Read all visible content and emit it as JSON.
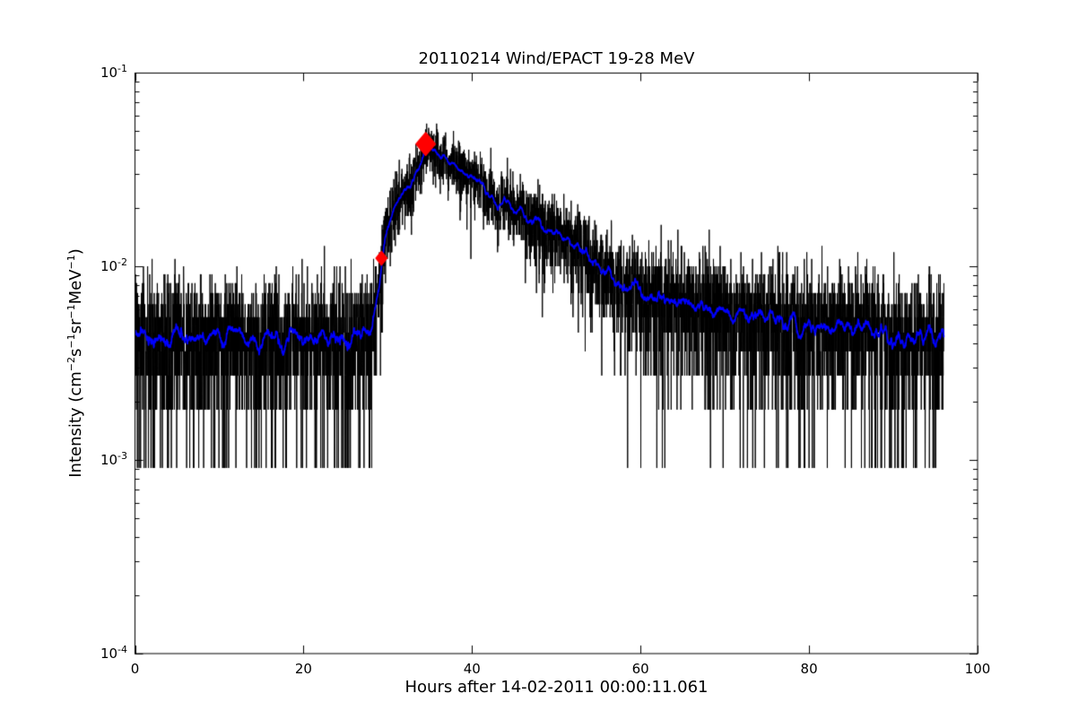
{
  "figure": {
    "background": "#ffffff"
  },
  "chart_data": {
    "type": "line",
    "title": "20110214 Wind/EPACT 19-28 MeV",
    "xlabel": "Hours after 14-02-2011 00:00:11.061",
    "ylabel_segments": [
      {
        "text": "Intensity (cm"
      },
      {
        "sup": "−2"
      },
      {
        "text": "s"
      },
      {
        "sup": "−1"
      },
      {
        "text": "sr"
      },
      {
        "sup": "−1"
      },
      {
        "text": "MeV"
      },
      {
        "sup": "−1"
      },
      {
        "text": ")"
      }
    ],
    "xlim": [
      0,
      100
    ],
    "yscale": "log",
    "ylim_exp": [
      -4,
      -1
    ],
    "grid": false,
    "legend": "none",
    "x_ticks": [
      {
        "value": 0,
        "label": "0"
      },
      {
        "value": 20,
        "label": "20"
      },
      {
        "value": 40,
        "label": "40"
      },
      {
        "value": 60,
        "label": "60"
      },
      {
        "value": 80,
        "label": "80"
      },
      {
        "value": 100,
        "label": "100"
      }
    ],
    "y_ticks": [
      {
        "value": 0.1,
        "base": "10",
        "exp": "-1"
      },
      {
        "value": 0.01,
        "base": "10",
        "exp": "-2"
      },
      {
        "value": 0.001,
        "base": "10",
        "exp": "-3"
      },
      {
        "value": 0.0001,
        "base": "10",
        "exp": "-4"
      }
    ],
    "y_minor_multiples": [
      2,
      3,
      4,
      5,
      6,
      7,
      8,
      9
    ],
    "series": [
      {
        "name": "raw 1-min intensity",
        "color": "#000000",
        "style": "noisy-line",
        "cadence_minutes": 1,
        "hours_start": 0,
        "hours_end": 96,
        "noise_model": "poisson",
        "counts_per_intensity": 1100,
        "min_counts_floor": 1,
        "seed": 20110214,
        "line_width": 1
      },
      {
        "name": "smoothed intensity",
        "color": "#0000ff",
        "style": "line",
        "smoothing_window_minutes": 45,
        "line_width": 1.7
      }
    ],
    "mean_curve": {
      "comment": "underlying intensity level read from the blue smoothed trace (hours, cm-2 s-1 sr-1 MeV-1)",
      "hours": [
        0,
        27.9,
        28.7,
        29.2,
        29.7,
        30.0,
        30.7,
        31.5,
        32.5,
        33.2,
        34.0,
        34.6,
        35.2,
        36.5,
        38.0,
        40.0,
        41.0,
        42.0,
        42.7,
        43.2,
        43.9,
        45.0,
        46.0,
        48.0,
        50.0,
        52.0,
        54.0,
        56.0,
        58.0,
        60.0,
        63.0,
        66.0,
        70.0,
        74.0,
        78.0,
        82.0,
        86.0,
        90.0,
        96.0
      ],
      "intensity": [
        0.0043,
        0.0044,
        0.0065,
        0.0085,
        0.013,
        0.018,
        0.02,
        0.023,
        0.026,
        0.029,
        0.035,
        0.04,
        0.0395,
        0.037,
        0.0335,
        0.029,
        0.026,
        0.024,
        0.022,
        0.019,
        0.0235,
        0.019,
        0.018,
        0.016,
        0.015,
        0.013,
        0.011,
        0.0093,
        0.008,
        0.0075,
        0.0068,
        0.0062,
        0.0058,
        0.0054,
        0.0051,
        0.0048,
        0.0046,
        0.0044,
        0.0042
      ]
    },
    "markers": {
      "color": "#ff0000",
      "shape": "diamond",
      "points": [
        {
          "name": "onset",
          "hours": 29.25,
          "intensity": 0.011,
          "size": "small"
        },
        {
          "name": "peak",
          "hours": 34.5,
          "intensity": 0.0428,
          "size": "large"
        }
      ]
    }
  }
}
